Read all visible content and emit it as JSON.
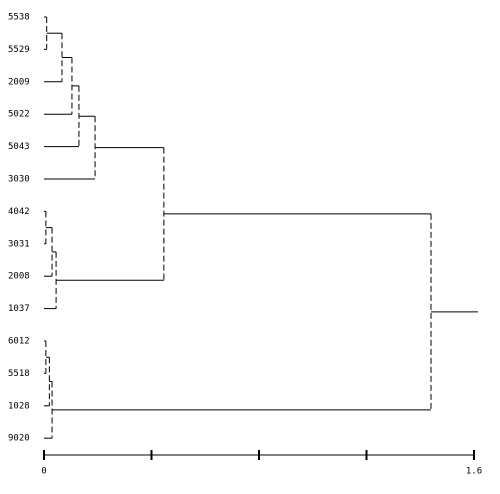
{
  "chart_data": {
    "type": "dendrogram",
    "leaves": [
      "5538",
      "5529",
      "2009",
      "5022",
      "5043",
      "3030",
      "4042",
      "3031",
      "2008",
      "1037",
      "6012",
      "5518",
      "1028",
      "9020"
    ],
    "merges": [
      [
        0,
        1,
        0.01
      ],
      [
        14,
        2,
        0.067
      ],
      [
        15,
        3,
        0.104
      ],
      [
        16,
        4,
        0.13
      ],
      [
        17,
        5,
        0.19
      ],
      [
        6,
        7,
        0.007
      ],
      [
        19,
        8,
        0.03
      ],
      [
        20,
        9,
        0.045
      ],
      [
        18,
        21,
        0.446
      ],
      [
        10,
        11,
        0.007
      ],
      [
        23,
        12,
        0.02
      ],
      [
        24,
        13,
        0.03
      ],
      [
        22,
        25,
        1.44
      ]
    ],
    "xlim": [
      0,
      1.6
    ],
    "xticks": [
      0,
      1.6
    ],
    "xminorticks": [
      0.4,
      0.8,
      1.2
    ],
    "color": "#000000"
  }
}
